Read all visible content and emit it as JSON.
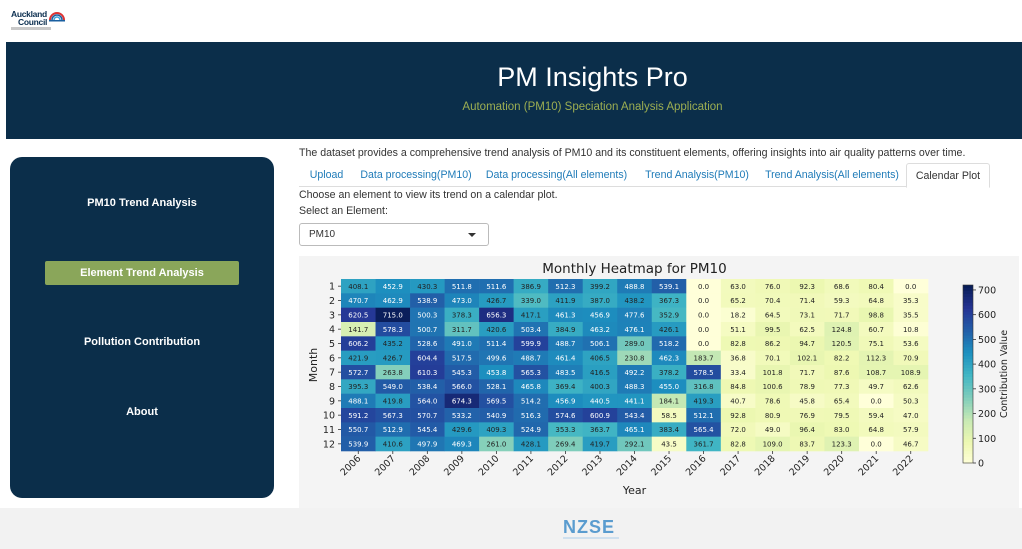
{
  "logo": {
    "line1": "Auckland",
    "line2": "Council"
  },
  "header": {
    "title": "PM Insights Pro",
    "subtitle": "Automation (PM10) Speciation Analysis Application"
  },
  "sidebar": {
    "items": [
      {
        "label": "PM10 Trend Analysis",
        "active": false
      },
      {
        "label": "Element Trend Analysis",
        "active": true
      },
      {
        "label": "Pollution Contribution",
        "active": false
      },
      {
        "label": "About",
        "active": false
      }
    ]
  },
  "main": {
    "description": "The dataset provides a comprehensive trend analysis of PM10 and its constituent elements, offering insights into air quality patterns over time.",
    "tabs": [
      {
        "label": "Upload"
      },
      {
        "label": "Data processing(PM10)"
      },
      {
        "label": "Data processing(All elements)"
      },
      {
        "label": "Trend Analysis(PM10)"
      },
      {
        "label": "Trend Analysis(All elements)"
      },
      {
        "label": "Calendar Plot"
      }
    ],
    "active_tab": "Calendar Plot",
    "prompt": "Choose an element to view its trend on a calendar plot.",
    "select_label": "Select an Element:",
    "select_value": "PM10"
  },
  "footer": {
    "logo_text": "NZSE"
  },
  "chart_data": {
    "type": "heatmap",
    "title": "Monthly Heatmap for PM10",
    "xlabel": "Year",
    "ylabel": "Month",
    "colorbar_label": "Contribution Value",
    "colorbar_ticks": [
      0,
      100,
      200,
      300,
      400,
      500,
      600,
      700
    ],
    "vmin": 0,
    "vmax": 720,
    "x": [
      "2006",
      "2007",
      "2008",
      "2009",
      "2010",
      "2011",
      "2012",
      "2013",
      "2014",
      "2015",
      "2016",
      "2017",
      "2018",
      "2019",
      "2020",
      "2021",
      "2022"
    ],
    "y": [
      "1",
      "2",
      "3",
      "4",
      "5",
      "6",
      "7",
      "8",
      "9",
      "10",
      "11",
      "12"
    ],
    "values": [
      [
        408.1,
        452.9,
        430.3,
        511.8,
        511.6,
        386.9,
        512.3,
        399.2,
        488.8,
        539.1,
        0.0,
        63.0,
        76.0,
        92.3,
        68.6,
        80.4,
        0.0
      ],
      [
        470.7,
        462.9,
        538.9,
        473.0,
        426.7,
        339.0,
        411.9,
        387.0,
        438.2,
        367.3,
        0.0,
        65.2,
        70.4,
        71.4,
        59.3,
        64.8,
        35.3
      ],
      [
        620.5,
        715.0,
        500.3,
        378.3,
        656.3,
        417.1,
        461.3,
        456.9,
        477.6,
        352.9,
        0.0,
        18.2,
        64.5,
        73.1,
        71.7,
        98.8,
        35.5
      ],
      [
        141.7,
        578.3,
        500.7,
        311.7,
        420.6,
        503.4,
        384.9,
        463.2,
        476.1,
        426.1,
        0.0,
        51.1,
        99.5,
        62.5,
        124.8,
        60.7,
        10.8
      ],
      [
        606.2,
        435.2,
        528.6,
        491.0,
        511.4,
        599.9,
        488.7,
        506.1,
        289.0,
        518.2,
        0.0,
        82.8,
        86.2,
        94.7,
        120.5,
        75.1,
        53.6
      ],
      [
        421.9,
        426.7,
        604.4,
        517.5,
        499.6,
        488.7,
        461.4,
        406.5,
        230.8,
        462.3,
        183.7,
        36.8,
        70.1,
        102.1,
        82.2,
        112.3,
        70.9
      ],
      [
        572.7,
        263.8,
        610.3,
        545.3,
        453.8,
        565.3,
        483.5,
        416.5,
        492.2,
        378.2,
        578.5,
        33.4,
        101.8,
        71.7,
        87.6,
        108.7,
        108.9
      ],
      [
        395.3,
        549.0,
        538.4,
        566.0,
        528.1,
        465.8,
        369.4,
        400.3,
        488.3,
        455.0,
        316.8,
        84.8,
        100.6,
        78.9,
        77.3,
        49.7,
        62.6
      ],
      [
        488.1,
        419.8,
        564.0,
        674.3,
        569.5,
        514.2,
        456.9,
        440.5,
        441.1,
        184.1,
        419.3,
        40.7,
        78.6,
        45.8,
        65.4,
        0.0,
        50.3
      ],
      [
        591.2,
        567.3,
        570.7,
        533.2,
        540.9,
        516.3,
        574.6,
        600.9,
        543.4,
        58.5,
        512.1,
        92.8,
        80.9,
        76.9,
        79.5,
        59.4,
        47.0
      ],
      [
        550.7,
        512.9,
        545.4,
        429.6,
        409.3,
        524.9,
        353.3,
        363.7,
        465.1,
        383.4,
        565.4,
        72.0,
        49.0,
        96.4,
        83.0,
        64.8,
        57.9
      ],
      [
        539.9,
        410.6,
        497.9,
        469.3,
        261.0,
        428.1,
        269.4,
        419.7,
        292.1,
        43.5,
        361.7,
        82.8,
        109.0,
        83.7,
        123.3,
        0.0,
        46.7
      ]
    ]
  }
}
